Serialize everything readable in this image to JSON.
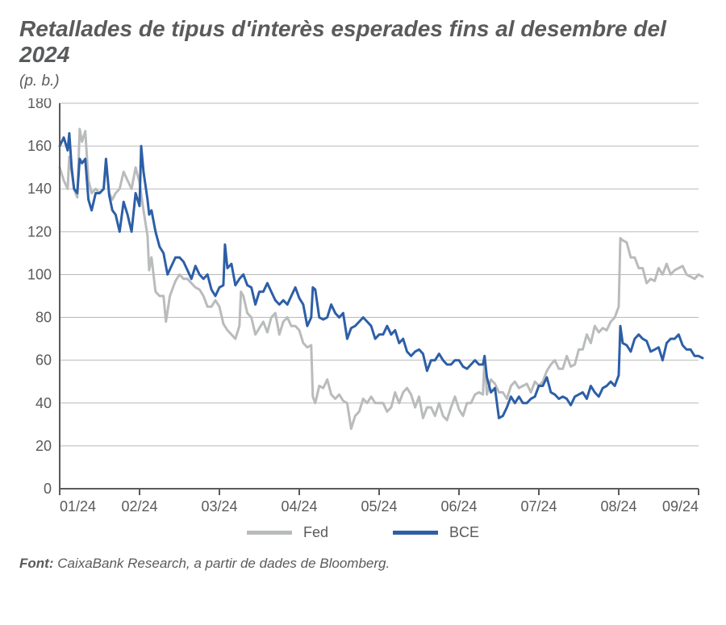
{
  "title_text": "Retallades de tipus d'interès esperades fins al desembre del 2024",
  "subtitle_text": "(p. b.)",
  "source_label": "Font:",
  "source_text": " CaixaBank Research, a partir de dades de Bloomberg.",
  "chart": {
    "type": "line",
    "background_color": "#ffffff",
    "grid_color": "#b9b9b9",
    "axis_color": "#595a5c",
    "tick_font_size": 18,
    "ylim": [
      0,
      180
    ],
    "ytick_step": 20,
    "y_ticks": [
      0,
      20,
      40,
      60,
      80,
      100,
      120,
      140,
      160,
      180
    ],
    "xlim": [
      0,
      8
    ],
    "x_ticks": [
      0,
      1,
      2,
      3,
      4,
      5,
      6,
      7,
      8
    ],
    "x_labels": [
      "01/24",
      "02/24",
      "03/24",
      "04/24",
      "05/24",
      "06/24",
      "07/24",
      "08/24",
      "09/24"
    ],
    "legend": [
      {
        "name": "Fed",
        "color": "#b9bbbc"
      },
      {
        "name": "BCE",
        "color": "#2d5fa7"
      }
    ],
    "line_width": 3.0,
    "series": {
      "fed": {
        "color": "#b9bbbc",
        "x": [
          0.0,
          0.05,
          0.1,
          0.12,
          0.15,
          0.18,
          0.22,
          0.25,
          0.28,
          0.32,
          0.36,
          0.4,
          0.45,
          0.5,
          0.55,
          0.58,
          0.62,
          0.66,
          0.7,
          0.75,
          0.8,
          0.85,
          0.9,
          0.95,
          1.0,
          1.05,
          1.1,
          1.12,
          1.15,
          1.2,
          1.25,
          1.3,
          1.33,
          1.38,
          1.45,
          1.5,
          1.55,
          1.6,
          1.65,
          1.7,
          1.75,
          1.8,
          1.85,
          1.9,
          1.95,
          2.0,
          2.05,
          2.1,
          2.15,
          2.2,
          2.25,
          2.27,
          2.3,
          2.35,
          2.4,
          2.45,
          2.5,
          2.55,
          2.6,
          2.65,
          2.7,
          2.75,
          2.8,
          2.85,
          2.9,
          2.95,
          3.0,
          3.05,
          3.1,
          3.15,
          3.17,
          3.2,
          3.25,
          3.3,
          3.35,
          3.4,
          3.45,
          3.5,
          3.55,
          3.6,
          3.65,
          3.7,
          3.75,
          3.8,
          3.85,
          3.9,
          3.95,
          4.0,
          4.05,
          4.1,
          4.15,
          4.2,
          4.25,
          4.3,
          4.35,
          4.4,
          4.45,
          4.5,
          4.55,
          4.6,
          4.65,
          4.7,
          4.75,
          4.8,
          4.85,
          4.9,
          4.95,
          5.0,
          5.05,
          5.1,
          5.15,
          5.2,
          5.25,
          5.3,
          5.32,
          5.35,
          5.4,
          5.45,
          5.5,
          5.55,
          5.6,
          5.65,
          5.7,
          5.75,
          5.8,
          5.85,
          5.9,
          5.95,
          6.0,
          6.05,
          6.1,
          6.15,
          6.2,
          6.25,
          6.3,
          6.35,
          6.4,
          6.45,
          6.5,
          6.55,
          6.6,
          6.65,
          6.7,
          6.75,
          6.8,
          6.85,
          6.9,
          6.95,
          7.0,
          7.02,
          7.05,
          7.1,
          7.15,
          7.2,
          7.25,
          7.3,
          7.35,
          7.4,
          7.45,
          7.5,
          7.55,
          7.6,
          7.65,
          7.7,
          7.75,
          7.8,
          7.85,
          7.9,
          7.95,
          8.0,
          8.05
        ],
        "y": [
          150,
          144,
          140,
          155,
          148,
          140,
          136,
          168,
          162,
          167,
          144,
          138,
          140,
          138,
          140,
          152,
          138,
          135,
          138,
          140,
          148,
          144,
          140,
          150,
          143,
          130,
          118,
          102,
          108,
          92,
          90,
          90,
          78,
          90,
          97,
          100,
          98,
          98,
          96,
          94,
          93,
          90,
          85,
          85,
          88,
          85,
          77,
          74,
          72,
          70,
          76,
          92,
          90,
          82,
          80,
          72,
          75,
          78,
          73,
          80,
          82,
          72,
          78,
          80,
          76,
          76,
          74,
          68,
          66,
          67,
          43,
          40,
          48,
          47,
          51,
          44,
          42,
          44,
          41,
          40,
          28,
          34,
          36,
          42,
          40,
          43,
          40,
          40,
          40,
          36,
          38,
          45,
          40,
          45,
          47,
          44,
          38,
          43,
          33,
          38,
          38,
          34,
          40,
          34,
          32,
          38,
          43,
          37,
          34,
          40,
          40,
          44,
          45,
          44,
          61,
          44,
          51,
          49,
          45,
          45,
          42,
          48,
          50,
          47,
          48,
          49,
          45,
          50,
          48,
          50,
          55,
          58,
          60,
          56,
          56,
          62,
          57,
          58,
          65,
          65,
          72,
          68,
          76,
          73,
          75,
          74,
          78,
          80,
          85,
          117,
          116,
          115,
          108,
          108,
          103,
          103,
          96,
          98,
          97,
          103,
          100,
          105,
          100,
          102,
          103,
          104,
          100,
          99,
          98,
          100,
          99
        ]
      },
      "bce": {
        "color": "#2d5fa7",
        "x": [
          0.0,
          0.05,
          0.1,
          0.12,
          0.15,
          0.18,
          0.22,
          0.25,
          0.28,
          0.32,
          0.36,
          0.4,
          0.45,
          0.5,
          0.55,
          0.58,
          0.62,
          0.66,
          0.7,
          0.75,
          0.8,
          0.85,
          0.9,
          0.95,
          1.0,
          1.02,
          1.05,
          1.1,
          1.12,
          1.15,
          1.2,
          1.25,
          1.3,
          1.35,
          1.4,
          1.45,
          1.5,
          1.55,
          1.6,
          1.65,
          1.7,
          1.75,
          1.8,
          1.85,
          1.9,
          1.95,
          2.0,
          2.05,
          2.07,
          2.1,
          2.15,
          2.2,
          2.25,
          2.3,
          2.35,
          2.4,
          2.45,
          2.5,
          2.55,
          2.6,
          2.65,
          2.7,
          2.75,
          2.8,
          2.85,
          2.9,
          2.95,
          3.0,
          3.05,
          3.1,
          3.15,
          3.17,
          3.2,
          3.25,
          3.3,
          3.35,
          3.4,
          3.45,
          3.5,
          3.55,
          3.6,
          3.65,
          3.7,
          3.75,
          3.8,
          3.85,
          3.9,
          3.95,
          4.0,
          4.05,
          4.1,
          4.15,
          4.2,
          4.25,
          4.3,
          4.35,
          4.4,
          4.45,
          4.5,
          4.55,
          4.6,
          4.65,
          4.7,
          4.75,
          4.8,
          4.85,
          4.9,
          4.95,
          5.0,
          5.05,
          5.1,
          5.15,
          5.2,
          5.25,
          5.3,
          5.32,
          5.35,
          5.4,
          5.45,
          5.5,
          5.55,
          5.6,
          5.65,
          5.7,
          5.75,
          5.8,
          5.85,
          5.9,
          5.95,
          6.0,
          6.05,
          6.1,
          6.15,
          6.2,
          6.25,
          6.3,
          6.35,
          6.4,
          6.45,
          6.5,
          6.55,
          6.6,
          6.65,
          6.7,
          6.75,
          6.8,
          6.85,
          6.9,
          6.95,
          7.0,
          7.02,
          7.05,
          7.1,
          7.15,
          7.2,
          7.25,
          7.3,
          7.35,
          7.4,
          7.45,
          7.5,
          7.55,
          7.6,
          7.65,
          7.7,
          7.75,
          7.8,
          7.85,
          7.9,
          7.95,
          8.0,
          8.05
        ],
        "y": [
          160,
          164,
          158,
          166,
          150,
          140,
          138,
          154,
          152,
          154,
          135,
          130,
          138,
          138,
          140,
          154,
          137,
          130,
          128,
          120,
          134,
          128,
          120,
          138,
          132,
          160,
          148,
          135,
          128,
          130,
          120,
          113,
          110,
          100,
          104,
          108,
          108,
          106,
          102,
          98,
          104,
          100,
          98,
          100,
          93,
          90,
          94,
          95,
          114,
          103,
          105,
          95,
          98,
          100,
          95,
          94,
          86,
          92,
          92,
          96,
          92,
          88,
          86,
          88,
          86,
          90,
          94,
          89,
          86,
          76,
          80,
          94,
          93,
          80,
          79,
          80,
          86,
          82,
          80,
          82,
          70,
          75,
          76,
          78,
          80,
          78,
          76,
          70,
          72,
          72,
          76,
          72,
          74,
          68,
          70,
          64,
          62,
          64,
          65,
          63,
          55,
          60,
          60,
          63,
          60,
          58,
          58,
          60,
          60,
          57,
          56,
          58,
          60,
          58,
          58,
          62,
          52,
          45,
          47,
          33,
          34,
          38,
          43,
          40,
          43,
          40,
          40,
          42,
          43,
          48,
          48,
          52,
          45,
          44,
          42,
          43,
          42,
          39,
          43,
          44,
          45,
          42,
          48,
          45,
          43,
          47,
          48,
          50,
          48,
          53,
          76,
          68,
          67,
          64,
          70,
          72,
          70,
          69,
          64,
          65,
          66,
          60,
          68,
          70,
          70,
          72,
          67,
          65,
          65,
          62,
          62,
          61
        ]
      }
    }
  }
}
